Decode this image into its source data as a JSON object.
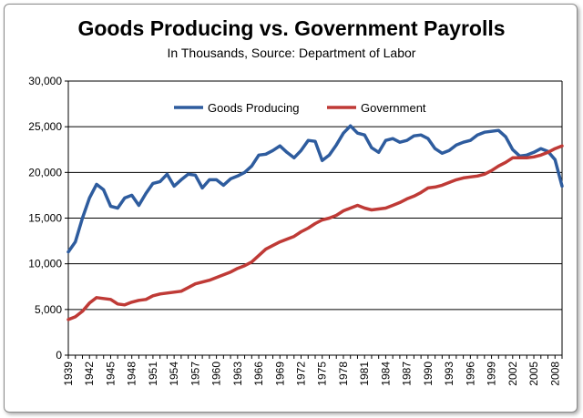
{
  "chart_data": {
    "type": "line",
    "title": "Goods Producing vs. Government Payrolls",
    "subtitle": "In Thousands,  Source: Department of Labor",
    "xlabel": "",
    "ylabel": "",
    "ylim": [
      0,
      30000
    ],
    "y_ticks": [
      "0",
      "5,000",
      "10,000",
      "15,000",
      "20,000",
      "25,000",
      "30,000"
    ],
    "x_tick_labels": [
      "1939",
      "1942",
      "1945",
      "1948",
      "1951",
      "1954",
      "1957",
      "1960",
      "1963",
      "1966",
      "1969",
      "1972",
      "1975",
      "1978",
      "1981",
      "1984",
      "1987",
      "1990",
      "1993",
      "1996",
      "1999",
      "2002",
      "2005",
      "2008"
    ],
    "x": [
      1939,
      1940,
      1941,
      1942,
      1943,
      1944,
      1945,
      1946,
      1947,
      1948,
      1949,
      1950,
      1951,
      1952,
      1953,
      1954,
      1955,
      1956,
      1957,
      1958,
      1959,
      1960,
      1961,
      1962,
      1963,
      1964,
      1965,
      1966,
      1967,
      1968,
      1969,
      1970,
      1971,
      1972,
      1973,
      1974,
      1975,
      1976,
      1977,
      1978,
      1979,
      1980,
      1981,
      1982,
      1983,
      1984,
      1985,
      1986,
      1987,
      1988,
      1989,
      1990,
      1991,
      1992,
      1993,
      1994,
      1995,
      1996,
      1997,
      1998,
      1999,
      2000,
      2001,
      2002,
      2003,
      2004,
      2005,
      2006,
      2007,
      2008,
      2009
    ],
    "grid": true,
    "legend_position": "top-center",
    "series": [
      {
        "name": "Goods Producing",
        "color": "#2E5C9E",
        "values": [
          11300,
          12400,
          15000,
          17200,
          18700,
          18100,
          16300,
          16100,
          17200,
          17500,
          16400,
          17700,
          18800,
          19000,
          19800,
          18500,
          19200,
          19800,
          19700,
          18300,
          19200,
          19200,
          18600,
          19300,
          19600,
          20000,
          20700,
          21900,
          22000,
          22400,
          22900,
          22200,
          21600,
          22400,
          23500,
          23400,
          21300,
          21900,
          23000,
          24300,
          25100,
          24300,
          24100,
          22700,
          22200,
          23500,
          23700,
          23300,
          23500,
          24000,
          24100,
          23700,
          22600,
          22100,
          22400,
          23000,
          23300,
          23500,
          24100,
          24400,
          24500,
          24600,
          23900,
          22500,
          21800,
          21900,
          22200,
          22600,
          22300,
          21400,
          18500
        ]
      },
      {
        "name": "Government",
        "color": "#BF3A36",
        "values": [
          3900,
          4200,
          4800,
          5700,
          6300,
          6200,
          6100,
          5600,
          5500,
          5800,
          6000,
          6100,
          6500,
          6700,
          6800,
          6900,
          7000,
          7400,
          7800,
          8000,
          8200,
          8500,
          8800,
          9100,
          9500,
          9800,
          10200,
          10900,
          11600,
          12000,
          12400,
          12700,
          13000,
          13500,
          13900,
          14400,
          14800,
          15000,
          15300,
          15800,
          16100,
          16400,
          16100,
          15900,
          16000,
          16100,
          16400,
          16700,
          17100,
          17400,
          17800,
          18300,
          18400,
          18600,
          18900,
          19200,
          19400,
          19500,
          19600,
          19800,
          20200,
          20700,
          21100,
          21600,
          21600,
          21600,
          21700,
          21900,
          22200,
          22600,
          22900
        ]
      }
    ]
  }
}
